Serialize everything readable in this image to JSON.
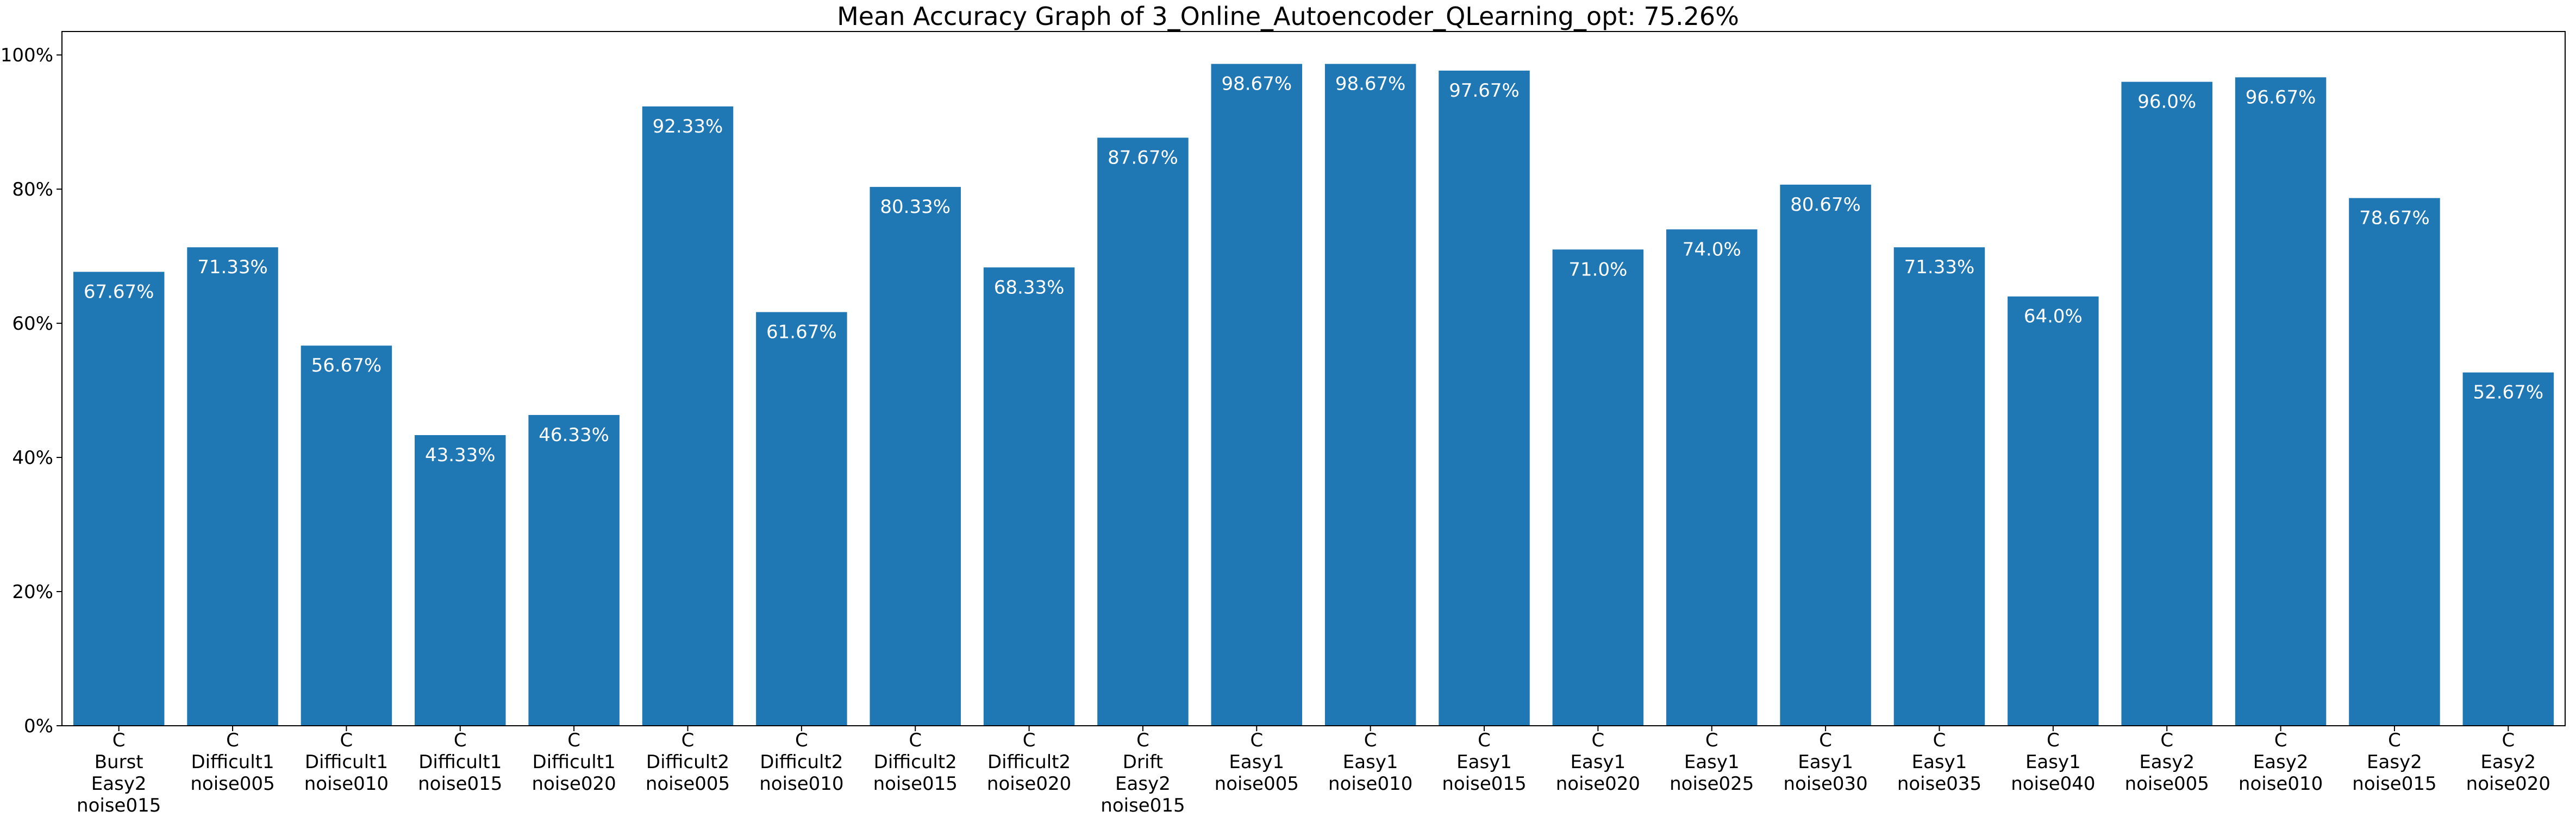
{
  "chart_data": {
    "type": "bar",
    "title": "Mean Accuracy Graph of 3_Online_Autoencoder_QLearning_opt: 75.26%",
    "xlabel": "",
    "ylabel": "",
    "ylim": [
      0,
      100
    ],
    "yticks": [
      0,
      20,
      40,
      60,
      80,
      100
    ],
    "ytick_labels": [
      "0%",
      "20%",
      "40%",
      "60%",
      "80%",
      "100%"
    ],
    "grid": false,
    "bar_color": "#1f77b4",
    "label_color": "#ffffff",
    "categories": [
      [
        "C",
        "Burst",
        "Easy2",
        "noise015"
      ],
      [
        "C",
        "Difficult1",
        "noise005"
      ],
      [
        "C",
        "Difficult1",
        "noise010"
      ],
      [
        "C",
        "Difficult1",
        "noise015"
      ],
      [
        "C",
        "Difficult1",
        "noise020"
      ],
      [
        "C",
        "Difficult2",
        "noise005"
      ],
      [
        "C",
        "Difficult2",
        "noise010"
      ],
      [
        "C",
        "Difficult2",
        "noise015"
      ],
      [
        "C",
        "Difficult2",
        "noise020"
      ],
      [
        "C",
        "Drift",
        "Easy2",
        "noise015"
      ],
      [
        "C",
        "Easy1",
        "noise005"
      ],
      [
        "C",
        "Easy1",
        "noise010"
      ],
      [
        "C",
        "Easy1",
        "noise015"
      ],
      [
        "C",
        "Easy1",
        "noise020"
      ],
      [
        "C",
        "Easy1",
        "noise025"
      ],
      [
        "C",
        "Easy1",
        "noise030"
      ],
      [
        "C",
        "Easy1",
        "noise035"
      ],
      [
        "C",
        "Easy1",
        "noise040"
      ],
      [
        "C",
        "Easy2",
        "noise005"
      ],
      [
        "C",
        "Easy2",
        "noise010"
      ],
      [
        "C",
        "Easy2",
        "noise015"
      ],
      [
        "C",
        "Easy2",
        "noise020"
      ]
    ],
    "values": [
      67.67,
      71.33,
      56.67,
      43.33,
      46.33,
      92.33,
      61.67,
      80.33,
      68.33,
      87.67,
      98.67,
      98.67,
      97.67,
      71.0,
      74.0,
      80.67,
      71.33,
      64.0,
      96.0,
      96.67,
      78.67,
      52.67
    ],
    "value_labels": [
      "67.67%",
      "71.33%",
      "56.67%",
      "43.33%",
      "46.33%",
      "92.33%",
      "61.67%",
      "80.33%",
      "68.33%",
      "87.67%",
      "98.67%",
      "98.67%",
      "97.67%",
      "71.0%",
      "74.0%",
      "80.67%",
      "71.33%",
      "64.0%",
      "96.0%",
      "96.67%",
      "78.67%",
      "52.67%"
    ]
  }
}
